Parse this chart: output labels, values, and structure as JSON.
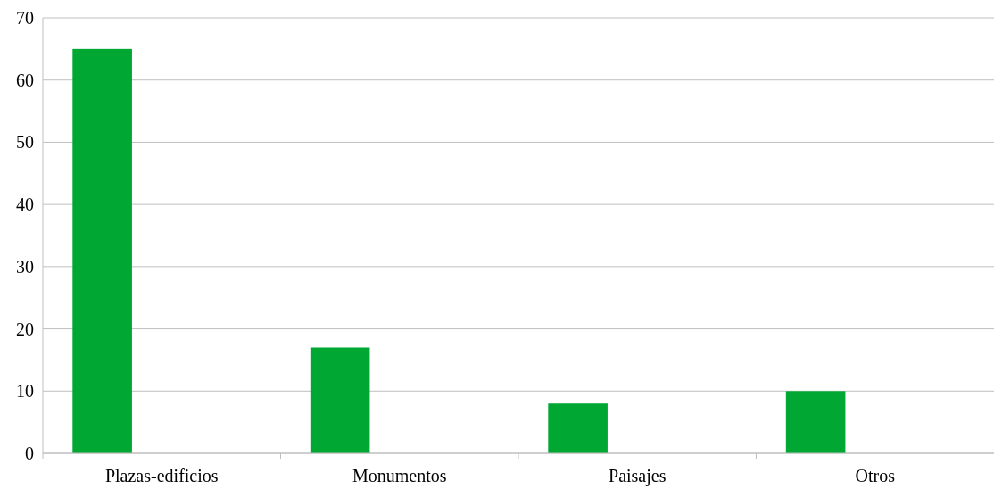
{
  "chart_data": {
    "type": "bar",
    "categories": [
      "Plazas-edificios",
      "Monumentos",
      "Paisajes",
      "Otros"
    ],
    "values": [
      65,
      17,
      8,
      10
    ],
    "color": "#00a833",
    "ylim": [
      0,
      70
    ],
    "yticks": [
      0,
      10,
      20,
      30,
      40,
      50,
      60,
      70
    ],
    "grid": "y"
  }
}
